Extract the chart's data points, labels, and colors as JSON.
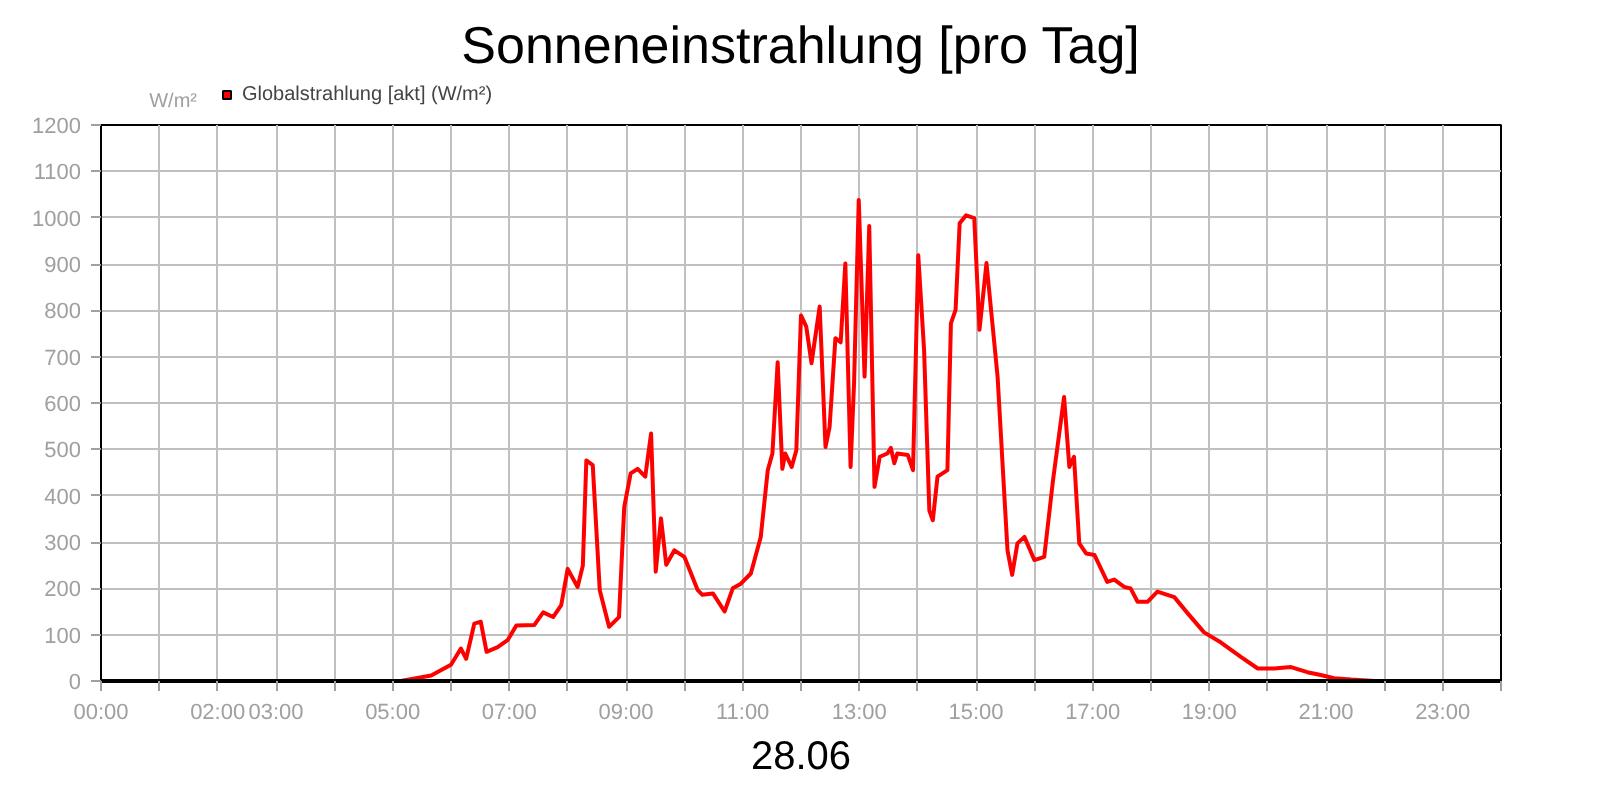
{
  "chart_data": {
    "type": "line",
    "title": "Sonneneinstrahlung [pro Tag]",
    "xlabel": "28.06",
    "ylabel": "W/m²",
    "x": [
      0,
      5.14,
      5.66,
      6.0,
      6.17,
      6.26,
      6.4,
      6.51,
      6.61,
      6.8,
      6.97,
      7.12,
      7.43,
      7.58,
      7.75,
      7.89,
      8.0,
      8.17,
      8.26,
      8.32,
      8.43,
      8.55,
      8.71,
      8.88,
      8.97,
      9.08,
      9.2,
      9.33,
      9.43,
      9.51,
      9.6,
      9.69,
      9.83,
      10.0,
      10.23,
      10.31,
      10.49,
      10.69,
      10.83,
      10.97,
      11.14,
      11.31,
      11.43,
      11.51,
      11.6,
      11.68,
      11.73,
      11.84,
      11.92,
      12.0,
      12.09,
      12.18,
      12.32,
      12.42,
      12.49,
      12.59,
      12.68,
      12.76,
      12.85,
      12.91,
      12.99,
      13.09,
      13.17,
      13.26,
      13.35,
      13.48,
      13.54,
      13.6,
      13.65,
      13.83,
      13.92,
      14.01,
      14.11,
      14.2,
      14.26,
      14.34,
      14.51,
      14.57,
      14.65,
      14.72,
      14.83,
      14.97,
      15.06,
      15.18,
      15.37,
      15.54,
      15.62,
      15.71,
      15.83,
      16.0,
      16.17,
      16.32,
      16.51,
      16.6,
      16.68,
      16.77,
      16.89,
      17.03,
      17.25,
      17.37,
      17.54,
      17.65,
      17.77,
      17.94,
      18.11,
      18.4,
      18.63,
      18.91,
      19.2,
      19.54,
      19.83,
      20.11,
      20.4,
      20.68,
      20.91,
      21.14,
      21.43,
      21.83,
      24
    ],
    "series": [
      {
        "name": "Globalstrahlung [akt] (W/m²)",
        "color": "#ff0000",
        "values": [
          0,
          0,
          12,
          35,
          70,
          48,
          124,
          128,
          63,
          73,
          88,
          120,
          121,
          148,
          138,
          164,
          242,
          203,
          249,
          476,
          466,
          196,
          117,
          138,
          376,
          448,
          458,
          441,
          534,
          236,
          351,
          251,
          282,
          268,
          196,
          186,
          189,
          150,
          200,
          210,
          232,
          311,
          455,
          491,
          688,
          458,
          491,
          462,
          498,
          789,
          765,
          686,
          808,
          505,
          548,
          740,
          731,
          901,
          462,
          644,
          1038,
          657,
          982,
          419,
          484,
          491,
          503,
          470,
          491,
          488,
          455,
          919,
          714,
          368,
          347,
          441,
          455,
          772,
          801,
          988,
          1005,
          999,
          758,
          902,
          657,
          282,
          229,
          297,
          311,
          261,
          268,
          433,
          613,
          462,
          484,
          297,
          275,
          272,
          214,
          219,
          203,
          200,
          171,
          171,
          193,
          181,
          146,
          105,
          83,
          52,
          27,
          27,
          30,
          19,
          13,
          6,
          3,
          0,
          0
        ]
      }
    ],
    "xlim": [
      0,
      24
    ],
    "xticks": [
      {
        "value": 0,
        "label": "00:00"
      },
      {
        "value": 1,
        "label": null
      },
      {
        "value": 2,
        "label": "02:00"
      },
      {
        "value": 3,
        "label": "03:00"
      },
      {
        "value": 4,
        "label": null
      },
      {
        "value": 5,
        "label": "05:00"
      },
      {
        "value": 6,
        "label": null
      },
      {
        "value": 7,
        "label": "07:00"
      },
      {
        "value": 8,
        "label": null
      },
      {
        "value": 9,
        "label": "09:00"
      },
      {
        "value": 10,
        "label": null
      },
      {
        "value": 11,
        "label": "11:00"
      },
      {
        "value": 12,
        "label": null
      },
      {
        "value": 13,
        "label": "13:00"
      },
      {
        "value": 14,
        "label": null
      },
      {
        "value": 15,
        "label": "15:00"
      },
      {
        "value": 16,
        "label": null
      },
      {
        "value": 17,
        "label": "17:00"
      },
      {
        "value": 18,
        "label": null
      },
      {
        "value": 19,
        "label": "19:00"
      },
      {
        "value": 20,
        "label": null
      },
      {
        "value": 21,
        "label": "21:00"
      },
      {
        "value": 22,
        "label": null
      },
      {
        "value": 23,
        "label": "23:00"
      },
      {
        "value": 24,
        "label": null
      }
    ],
    "ylim": [
      0,
      1200
    ],
    "yticks": [
      0,
      100,
      200,
      300,
      400,
      500,
      600,
      700,
      800,
      900,
      1000,
      1100,
      1200
    ],
    "grid": true,
    "legend": "top left",
    "marker": "none",
    "line_style": "solid"
  }
}
